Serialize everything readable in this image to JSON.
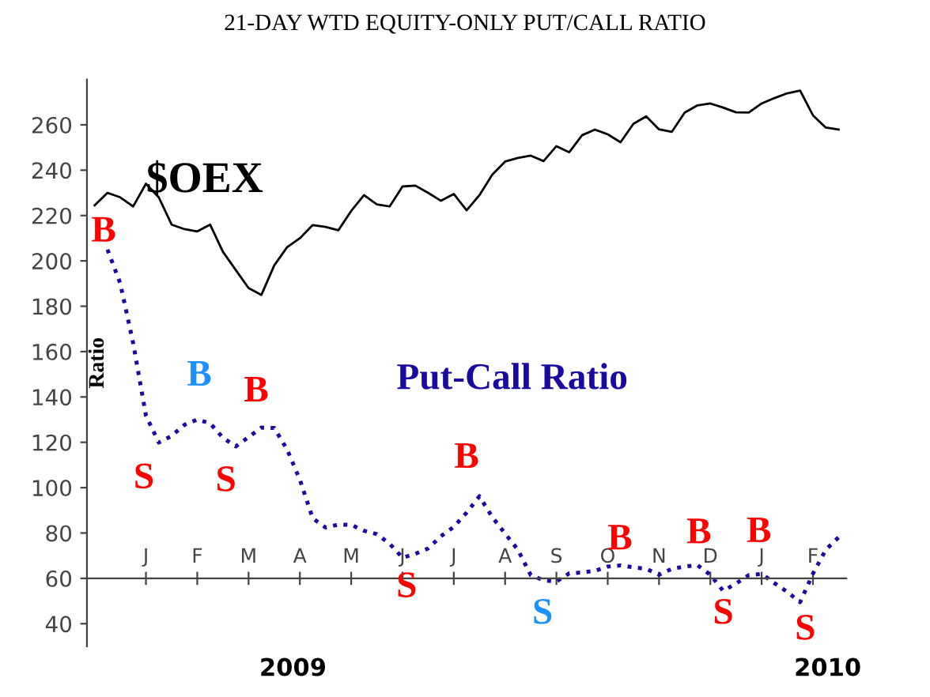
{
  "chart_data": {
    "type": "line",
    "title": "21-DAY WTD EQUITY-ONLY PUT/CALL RATIO",
    "ylabel": "Ratio",
    "categories": [
      null,
      null,
      null,
      null,
      "J",
      null,
      null,
      null,
      "F",
      null,
      null,
      null,
      "M",
      null,
      null,
      null,
      "A",
      null,
      null,
      null,
      "M",
      null,
      null,
      null,
      "J",
      null,
      null,
      null,
      "J",
      null,
      null,
      null,
      "A",
      null,
      null,
      null,
      "S",
      null,
      null,
      null,
      "O",
      null,
      null,
      null,
      "N",
      null,
      null,
      null,
      "D",
      null,
      null,
      null,
      "J",
      null,
      null,
      null,
      "F",
      null,
      null
    ],
    "ylim": [
      30,
      280
    ],
    "yticks": [
      40,
      60,
      80,
      100,
      120,
      140,
      160,
      180,
      200,
      220,
      240,
      260
    ],
    "grid": false,
    "series": [
      {
        "name": "$OEX",
        "color": "#000000",
        "line_style": "solid",
        "values": [
          224.5,
          230,
          228,
          224,
          234,
          228,
          216,
          214,
          213,
          216,
          204,
          196,
          188,
          185,
          198,
          206,
          210,
          215.8,
          215,
          213.5,
          222,
          229,
          224.9,
          224,
          232.8,
          233.2,
          230,
          226.5,
          229.5,
          222.3,
          229,
          238,
          243.8,
          245.4,
          246.4,
          244,
          250.6,
          247.9,
          255.4,
          257.9,
          255.8,
          252.3,
          260.4,
          263.7,
          258,
          256.9,
          265.4,
          268.6,
          269.4,
          267.6,
          265.5,
          265.4,
          269.4,
          271.8,
          273.9,
          275.1,
          264.2,
          258.8,
          257.9
        ]
      },
      {
        "name": "Put-Call Ratio",
        "color": "#1a0aa0",
        "line_style": "dotted",
        "values": [
          null,
          205,
          190,
          163.8,
          131.8,
          119.9,
          122.8,
          127.7,
          130,
          128.4,
          122,
          118.2,
          122.3,
          126.5,
          126.3,
          116.9,
          103.5,
          86.5,
          82.4,
          83.7,
          83.6,
          81,
          79.5,
          75.3,
          69.1,
          70.8,
          73.2,
          78.6,
          82.7,
          89,
          96.2,
          87,
          79.7,
          72.6,
          61.4,
          59.2,
          58.6,
          62.2,
          62.6,
          63.3,
          65.2,
          65.7,
          64.9,
          64.2,
          61.6,
          64.2,
          65.2,
          65.8,
          61.6,
          54.5,
          57.7,
          61.4,
          62.0,
          57.9,
          54,
          49.5,
          62.1,
          72.6,
          78.1
        ]
      }
    ],
    "annotations": [
      "B",
      "S",
      "B",
      "S",
      "B",
      "S",
      "B",
      "S",
      "B",
      "B",
      "S",
      "B",
      "S",
      "2009",
      "2010"
    ]
  }
}
